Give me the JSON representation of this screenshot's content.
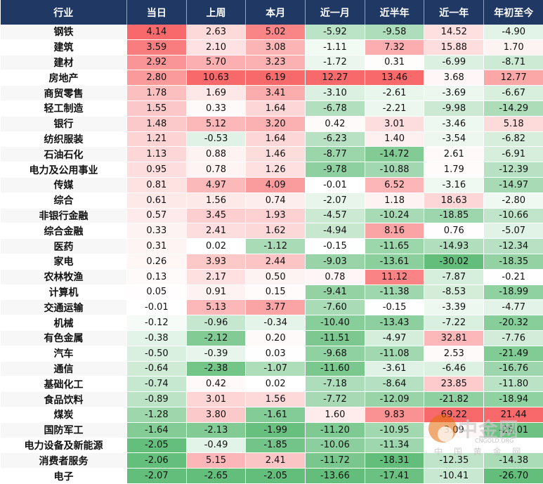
{
  "colors": {
    "header_bg": "#1f3864",
    "positive_max": "#f8696b",
    "negative_max": "#63be7b",
    "neutral": "#ffffff"
  },
  "chart_data": {
    "type": "heatmap",
    "columns": [
      "行业",
      "当日",
      "上周",
      "本月",
      "近一月",
      "近半年",
      "近一年",
      "年初至今"
    ],
    "rows": [
      {
        "industry": "钢铁",
        "values": [
          "4.14",
          "2.63",
          "5.02",
          "-5.92",
          "-9.58",
          "14.52",
          "-4.90"
        ]
      },
      {
        "industry": "建筑",
        "values": [
          "3.59",
          "2.10",
          "3.08",
          "-1.11",
          "7.32",
          "15.88",
          "1.70"
        ]
      },
      {
        "industry": "建材",
        "values": [
          "2.92",
          "5.70",
          "3.23",
          "-1.72",
          "0.31",
          "-6.99",
          "-8.71"
        ]
      },
      {
        "industry": "房地产",
        "values": [
          "2.80",
          "10.63",
          "6.19",
          "12.27",
          "13.46",
          "3.68",
          "12.77"
        ]
      },
      {
        "industry": "商贸零售",
        "values": [
          "1.78",
          "1.69",
          "3.41",
          "-3.10",
          "-2.61",
          "-3.69",
          "-6.67"
        ]
      },
      {
        "industry": "轻工制造",
        "values": [
          "1.55",
          "0.33",
          "1.64",
          "-6.78",
          "-2.21",
          "-9.98",
          "-14.29"
        ]
      },
      {
        "industry": "银行",
        "values": [
          "1.48",
          "5.12",
          "3.20",
          "0.42",
          "3.01",
          "-3.46",
          "5.18"
        ]
      },
      {
        "industry": "纺织服装",
        "values": [
          "1.21",
          "-0.53",
          "1.64",
          "-6.23",
          "1.40",
          "-3.54",
          "-6.82"
        ]
      },
      {
        "industry": "石油石化",
        "values": [
          "1.13",
          "0.88",
          "1.46",
          "-8.77",
          "-14.72",
          "2.61",
          "-6.91"
        ]
      },
      {
        "industry": "电力及公用事业",
        "values": [
          "0.95",
          "0.78",
          "1.26",
          "-9.78",
          "-10.88",
          "1.79",
          "-12.39"
        ]
      },
      {
        "industry": "传媒",
        "values": [
          "0.81",
          "4.97",
          "4.09",
          "-0.01",
          "6.52",
          "-3.16",
          "-14.97"
        ]
      },
      {
        "industry": "综合",
        "values": [
          "0.61",
          "1.56",
          "0.74",
          "-2.07",
          "1.18",
          "18.63",
          "-2.80"
        ]
      },
      {
        "industry": "非银行金融",
        "values": [
          "0.57",
          "3.45",
          "1.93",
          "-4.57",
          "-10.24",
          "-18.85",
          "-10.66"
        ]
      },
      {
        "industry": "综合金融",
        "values": [
          "0.33",
          "2.41",
          "1.62",
          "-4.94",
          "8.16",
          "0.76",
          "-5.07"
        ]
      },
      {
        "industry": "医药",
        "values": [
          "0.31",
          "0.02",
          "-1.12",
          "-0.15",
          "-11.65",
          "-14.93",
          "-12.34"
        ]
      },
      {
        "industry": "家电",
        "values": [
          "0.26",
          "3.93",
          "2.44",
          "-9.03",
          "-13.61",
          "-30.02",
          "-18.35"
        ]
      },
      {
        "industry": "农林牧渔",
        "values": [
          "0.13",
          "2.17",
          "0.50",
          "0.78",
          "11.12",
          "-7.87",
          "-0.21"
        ]
      },
      {
        "industry": "计算机",
        "values": [
          "0.05",
          "0.91",
          "0.15",
          "-9.41",
          "-11.38",
          "-8.53",
          "-18.99"
        ]
      },
      {
        "industry": "交通运输",
        "values": [
          "-0.01",
          "5.13",
          "3.77",
          "-7.60",
          "-0.15",
          "-3.39",
          "-4.77"
        ]
      },
      {
        "industry": "机械",
        "values": [
          "-0.12",
          "-0.96",
          "-0.34",
          "-10.40",
          "-13.43",
          "-7.22",
          "-20.32"
        ]
      },
      {
        "industry": "有色金属",
        "values": [
          "-0.38",
          "-2.12",
          "0.20",
          "-11.51",
          "-4.97",
          "32.81",
          "-7.76"
        ]
      },
      {
        "industry": "汽车",
        "values": [
          "-0.50",
          "-0.39",
          "0.03",
          "-9.68",
          "-11.08",
          "2.53",
          "-21.49"
        ]
      },
      {
        "industry": "通信",
        "values": [
          "-0.64",
          "-2.38",
          "-1.07",
          "-11.60",
          "-3.61",
          "-6.46",
          "-16.76"
        ]
      },
      {
        "industry": "基础化工",
        "values": [
          "-0.74",
          "0.42",
          "0.02",
          "-7.18",
          "-8.64",
          "23.85",
          "-11.80"
        ]
      },
      {
        "industry": "食品饮料",
        "values": [
          "-0.89",
          "3.01",
          "1.56",
          "-7.72",
          "-12.09",
          "-21.82",
          "-18.94"
        ]
      },
      {
        "industry": "煤炭",
        "values": [
          "-1.28",
          "3.80",
          "-1.61",
          "1.60",
          "9.83",
          "69.22",
          "21.44"
        ]
      },
      {
        "industry": "国防军工",
        "values": [
          "-1.64",
          "-2.13",
          "-1.99",
          "-11.20",
          "-10.95",
          "3.09",
          "-25.01"
        ]
      },
      {
        "industry": "电力设备及新能源",
        "values": [
          "-2.05",
          "-0.49",
          "-1.85",
          "-10.06",
          "-11.34",
          "",
          ""
        ]
      },
      {
        "industry": "消费者服务",
        "values": [
          "-2.06",
          "5.15",
          "2.41",
          "-11.72",
          "-18.31",
          "-12.35",
          "-14.38"
        ]
      },
      {
        "industry": "电子",
        "values": [
          "-2.07",
          "-2.65",
          "-2.05",
          "-13.66",
          "-17.41",
          "-10.41",
          "-26.70"
        ]
      }
    ]
  },
  "watermark": {
    "name": "中金网",
    "english": "CNGOLD.ORG",
    "chinese": "中 国 黄 金 网"
  }
}
